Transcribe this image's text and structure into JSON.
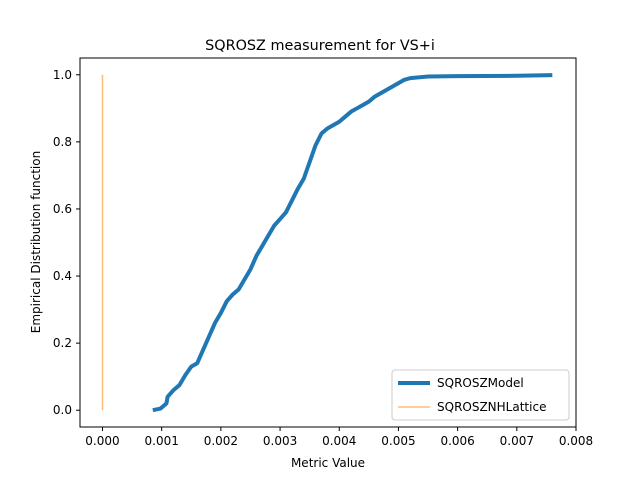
{
  "chart_data": {
    "type": "line",
    "title": "SQROSZ measurement for VS+i",
    "xlabel": "Metric Value",
    "ylabel": "Empirical Distribution function",
    "xlim": [
      -0.00038,
      0.008
    ],
    "ylim": [
      -0.05,
      1.05
    ],
    "xticks": [
      0.0,
      0.001,
      0.002,
      0.003,
      0.004,
      0.005,
      0.006,
      0.007,
      0.008
    ],
    "xtick_labels": [
      "0.000",
      "0.001",
      "0.002",
      "0.003",
      "0.004",
      "0.005",
      "0.006",
      "0.007",
      "0.008"
    ],
    "yticks": [
      0.0,
      0.2,
      0.4,
      0.6,
      0.8,
      1.0
    ],
    "ytick_labels": [
      "0.0",
      "0.2",
      "0.4",
      "0.6",
      "0.8",
      "1.0"
    ],
    "grid": false,
    "legend_position": "lower-right",
    "series": [
      {
        "name": "SQROSZModel",
        "color": "#1f77b4",
        "points": [
          [
            0.00085,
            0.0
          ],
          [
            0.00098,
            0.005
          ],
          [
            0.00108,
            0.02
          ],
          [
            0.0011,
            0.04
          ],
          [
            0.0012,
            0.06
          ],
          [
            0.0013,
            0.075
          ],
          [
            0.0014,
            0.105
          ],
          [
            0.0015,
            0.13
          ],
          [
            0.0016,
            0.14
          ],
          [
            0.0017,
            0.18
          ],
          [
            0.0018,
            0.22
          ],
          [
            0.0019,
            0.26
          ],
          [
            0.002,
            0.29
          ],
          [
            0.0021,
            0.325
          ],
          [
            0.0022,
            0.345
          ],
          [
            0.0023,
            0.36
          ],
          [
            0.0024,
            0.39
          ],
          [
            0.0025,
            0.42
          ],
          [
            0.0026,
            0.46
          ],
          [
            0.0027,
            0.49
          ],
          [
            0.0028,
            0.52
          ],
          [
            0.0029,
            0.55
          ],
          [
            0.003,
            0.57
          ],
          [
            0.0031,
            0.59
          ],
          [
            0.0032,
            0.625
          ],
          [
            0.0033,
            0.66
          ],
          [
            0.0034,
            0.69
          ],
          [
            0.0035,
            0.74
          ],
          [
            0.0036,
            0.79
          ],
          [
            0.0037,
            0.825
          ],
          [
            0.0038,
            0.84
          ],
          [
            0.0039,
            0.85
          ],
          [
            0.004,
            0.86
          ],
          [
            0.0041,
            0.875
          ],
          [
            0.0042,
            0.89
          ],
          [
            0.0043,
            0.9
          ],
          [
            0.0044,
            0.91
          ],
          [
            0.0045,
            0.92
          ],
          [
            0.0046,
            0.935
          ],
          [
            0.0047,
            0.945
          ],
          [
            0.0048,
            0.955
          ],
          [
            0.0049,
            0.965
          ],
          [
            0.005,
            0.975
          ],
          [
            0.0051,
            0.985
          ],
          [
            0.0052,
            0.99
          ],
          [
            0.0055,
            0.995
          ],
          [
            0.006,
            0.996
          ],
          [
            0.007,
            0.997
          ],
          [
            0.0076,
            0.999
          ]
        ]
      },
      {
        "name": "SQROSZNHLattice",
        "color": "#ffbb78",
        "points": [
          [
            0.0,
            0.0
          ],
          [
            0.0,
            1.0
          ]
        ]
      }
    ]
  }
}
